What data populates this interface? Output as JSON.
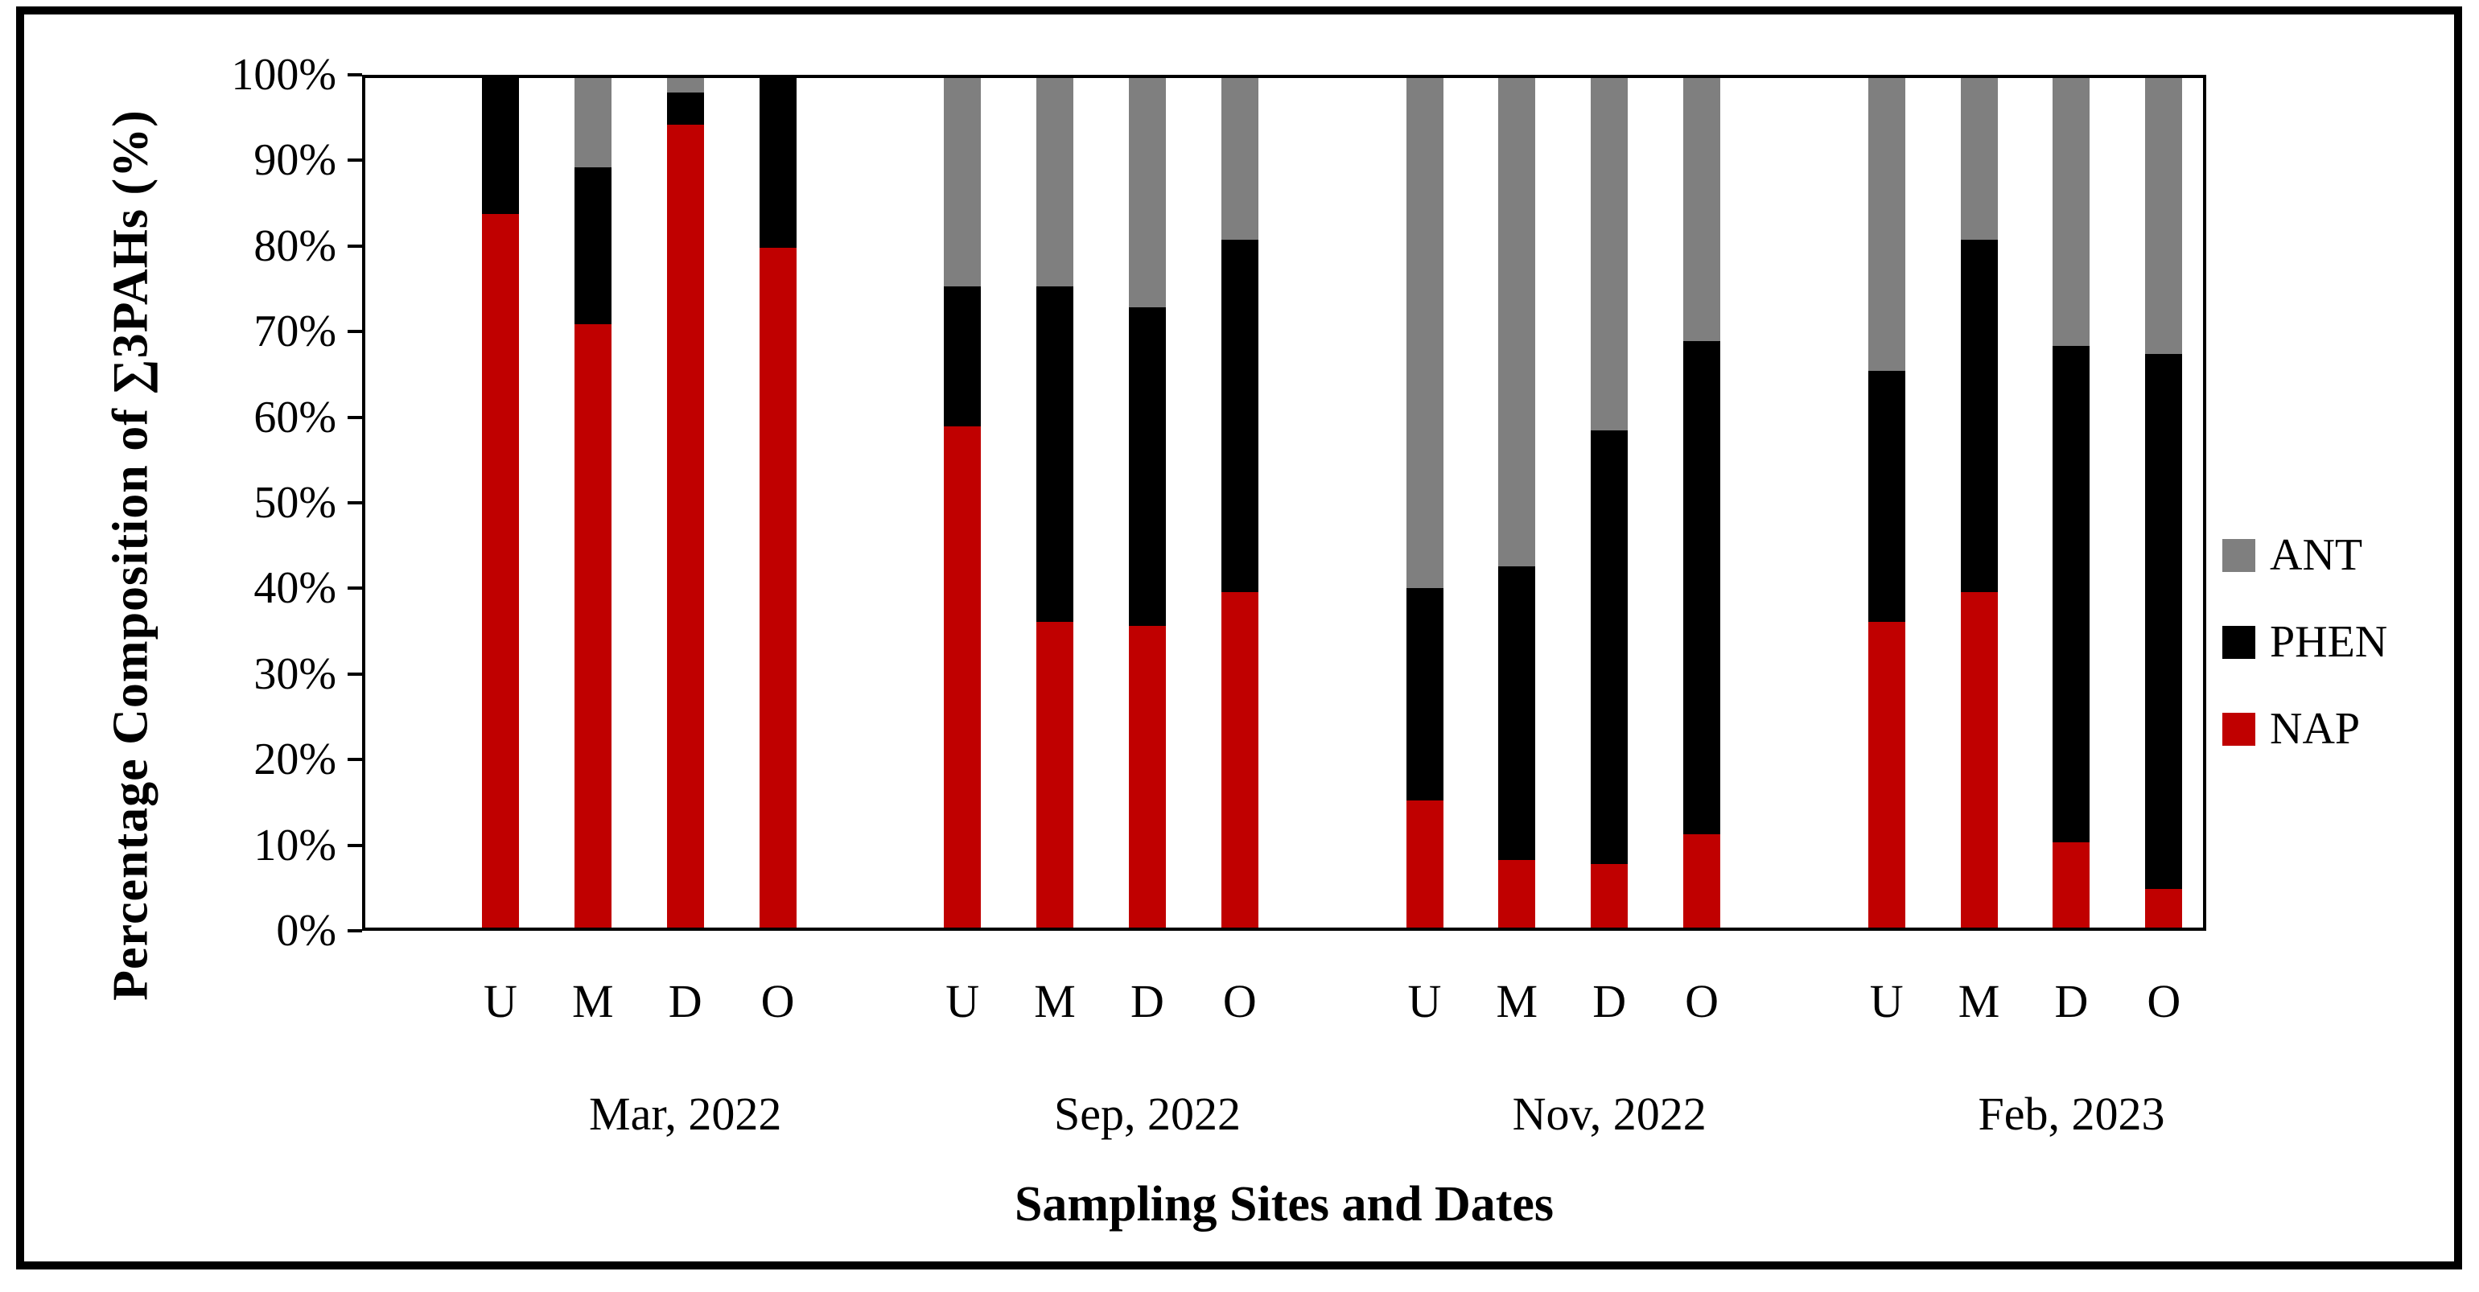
{
  "chart_data": {
    "type": "bar",
    "stacked": true,
    "percent_stacked": true,
    "title": "",
    "xlabel": "Sampling Sites and Dates",
    "ylabel": "Percentage Composition of ∑3PAHs (%)",
    "ylim": [
      0,
      100
    ],
    "y_ticks": [
      "0%",
      "10%",
      "20%",
      "30%",
      "40%",
      "50%",
      "60%",
      "70%",
      "80%",
      "90%",
      "100%"
    ],
    "grid": false,
    "legend_position": "right",
    "legend": [
      {
        "name": "ANT",
        "color": "#7f7f7f"
      },
      {
        "name": "PHEN",
        "color": "#000000"
      },
      {
        "name": "NAP",
        "color": "#c00000"
      }
    ],
    "stack_order_bottom_to_top": [
      "NAP",
      "PHEN",
      "ANT"
    ],
    "series_colors": {
      "NAP": "#c00000",
      "PHEN": "#000000",
      "ANT": "#7f7f7f"
    },
    "groups": [
      {
        "label": "Mar, 2022",
        "sites": [
          "U",
          "M",
          "D",
          "O"
        ],
        "values": {
          "NAP": [
            84,
            71,
            94.5,
            80
          ],
          "PHEN": [
            16,
            18.5,
            3.8,
            20
          ],
          "ANT": [
            0,
            10.5,
            1.7,
            0
          ]
        }
      },
      {
        "label": "Sep, 2022",
        "sites": [
          "U",
          "M",
          "D",
          "O"
        ],
        "values": {
          "NAP": [
            59,
            36,
            35.5,
            39.5
          ],
          "PHEN": [
            16.5,
            39.5,
            37.5,
            41.5
          ],
          "ANT": [
            24.5,
            24.5,
            27,
            19
          ]
        }
      },
      {
        "label": "Nov, 2022",
        "sites": [
          "U",
          "M",
          "D",
          "O"
        ],
        "values": {
          "NAP": [
            15,
            8,
            7.5,
            11
          ],
          "PHEN": [
            25,
            34.5,
            51,
            58
          ],
          "ANT": [
            60,
            57.5,
            41.5,
            31
          ]
        }
      },
      {
        "label": "Feb, 2023",
        "sites": [
          "U",
          "M",
          "D",
          "O"
        ],
        "values": {
          "NAP": [
            36,
            39.5,
            10,
            4.5
          ],
          "PHEN": [
            29.5,
            41.5,
            58.5,
            63
          ],
          "ANT": [
            34.5,
            19,
            31.5,
            32.5
          ]
        }
      }
    ]
  }
}
